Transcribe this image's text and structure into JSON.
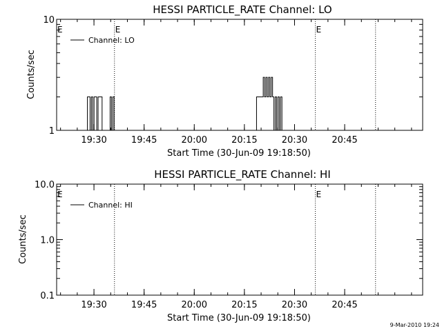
{
  "timestamp": "9-Mar-2010 19:24",
  "chart_data": [
    {
      "type": "line",
      "title": "HESSI PARTICLE_RATE Channel: LO",
      "xlabel": "Start Time (30-Jun-09 19:18:50)",
      "ylabel": "Counts/sec",
      "y_scale": "log",
      "ylim": [
        1,
        10
      ],
      "y_ticks": [
        1,
        10
      ],
      "y_tick_labels": [
        "1",
        "10"
      ],
      "xlim_minutes_from_start": [
        0,
        109.5
      ],
      "x_ticks": [
        11.17,
        26.17,
        41.17,
        56.17,
        71.17,
        86.17
      ],
      "x_tick_labels": [
        "19:30",
        "19:45",
        "20:00",
        "20:15",
        "20:30",
        "20:45"
      ],
      "legend": {
        "position": "top-left",
        "entries": [
          "Channel: LO"
        ]
      },
      "event_markers": [
        {
          "x": 17.3,
          "label": "E"
        },
        {
          "x": 77.4,
          "label": "E"
        },
        {
          "x": 95.4,
          "label": ""
        }
      ],
      "edge_labels": [
        {
          "x": 0,
          "label": "E"
        }
      ],
      "series": [
        {
          "name": "Channel: LO",
          "x": [
            8.8,
            9.2,
            9.6,
            10.0,
            10.4,
            10.8,
            11.2,
            11.6,
            12.0,
            12.4,
            12.8,
            13.2,
            13.6,
            14.0,
            14.4,
            14.8,
            15.2,
            15.6,
            16.0,
            16.4,
            16.8,
            17.2,
            17.6,
            18.0,
            59.4,
            59.8,
            60.2,
            60.6,
            61.0,
            61.4,
            61.8,
            62.2,
            62.6,
            63.0,
            63.4,
            63.8,
            64.2,
            64.6,
            65.0,
            65.4,
            65.8,
            66.2,
            66.6,
            67.0,
            67.4,
            67.8
          ],
          "y": [
            1,
            2,
            2,
            1,
            2,
            1,
            2,
            2,
            1,
            2,
            2,
            2,
            1,
            1,
            1,
            1,
            1,
            1,
            2,
            1,
            2,
            1,
            1,
            1,
            1,
            2,
            2,
            2,
            2,
            2,
            3,
            2,
            3,
            2,
            3,
            2,
            3,
            2,
            1,
            2,
            1,
            2,
            1,
            2,
            1,
            1
          ]
        }
      ]
    },
    {
      "type": "line",
      "title": "HESSI PARTICLE_RATE Channel: HI",
      "xlabel": "Start Time (30-Jun-09 19:18:50)",
      "ylabel": "Counts/sec",
      "y_scale": "log",
      "ylim": [
        0.1,
        10
      ],
      "y_ticks": [
        0.1,
        1,
        10
      ],
      "y_tick_labels": [
        "0.1",
        "1.0",
        "10.0"
      ],
      "xlim_minutes_from_start": [
        0,
        109.5
      ],
      "x_ticks": [
        11.17,
        26.17,
        41.17,
        56.17,
        71.17,
        86.17
      ],
      "x_tick_labels": [
        "19:30",
        "19:45",
        "20:00",
        "20:15",
        "20:30",
        "20:45"
      ],
      "legend": {
        "position": "top-left",
        "entries": [
          "Channel: HI"
        ]
      },
      "event_markers": [
        {
          "x": 17.3,
          "label": ""
        },
        {
          "x": 77.4,
          "label": "E"
        },
        {
          "x": 95.4,
          "label": ""
        }
      ],
      "edge_labels": [
        {
          "x": 0,
          "label": "E"
        }
      ],
      "series": [
        {
          "name": "Channel: HI",
          "x": [],
          "y": []
        }
      ]
    }
  ]
}
